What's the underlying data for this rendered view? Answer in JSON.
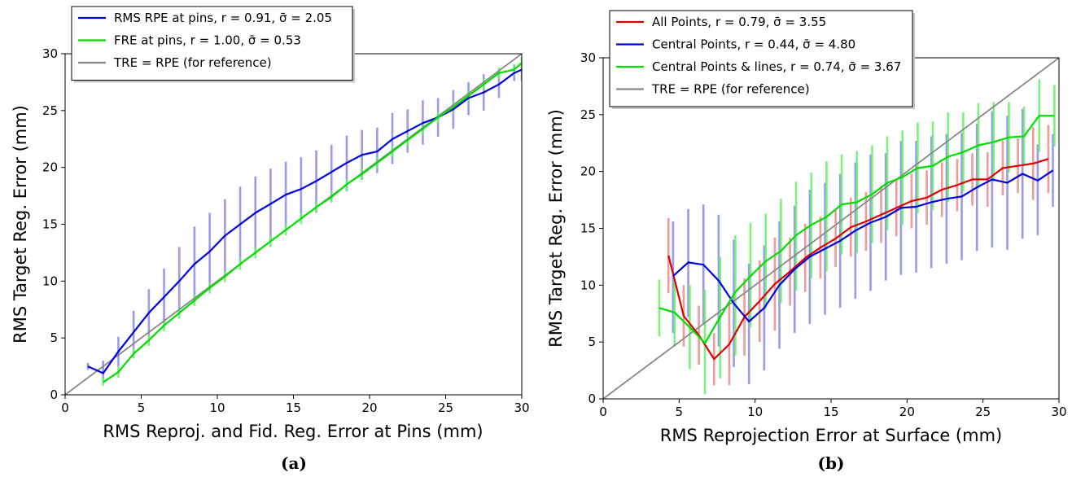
{
  "chart_data": [
    {
      "type": "line",
      "caption": "(a)",
      "xlabel": "RMS Reproj. and Fid. Reg. Error at Pins (mm)",
      "ylabel": "RMS Target Reg. Error (mm)",
      "xlim": [
        0,
        30
      ],
      "ylim": [
        0,
        30
      ],
      "xticks": [
        "0",
        "5",
        "10",
        "15",
        "20",
        "25",
        "30"
      ],
      "yticks": [
        "0",
        "5",
        "10",
        "15",
        "20",
        "25",
        "30"
      ],
      "grid": false,
      "legend_position": "top-left",
      "series": [
        {
          "name": "RMS RPE at pins, r = 0.91, σ̄ = 2.05",
          "color": "#0000dd",
          "errcolor": "#8888ee",
          "x": [
            1.5,
            2.5,
            3.5,
            4.5,
            5.5,
            6.5,
            7.5,
            8.5,
            9.5,
            10.5,
            11.5,
            12.5,
            13.5,
            14.5,
            15.5,
            16.5,
            17.5,
            18.5,
            19.5,
            20.5,
            21.5,
            22.5,
            23.5,
            24.5,
            25.5,
            26.5,
            27.5,
            28.5,
            29.5,
            30
          ],
          "y": [
            2.5,
            1.9,
            3.8,
            5.5,
            7.2,
            8.6,
            10.0,
            11.5,
            12.6,
            14.0,
            15.0,
            16.0,
            16.8,
            17.6,
            18.1,
            18.8,
            19.6,
            20.4,
            21.1,
            21.4,
            22.5,
            23.2,
            23.9,
            24.4,
            25.1,
            26.1,
            26.6,
            27.3,
            28.3,
            28.6
          ],
          "err_low": [
            2.2,
            1.3,
            2.5,
            3.6,
            5.1,
            6.2,
            7.0,
            8.2,
            9.2,
            10.7,
            11.7,
            12.4,
            13.5,
            14.5,
            15.4,
            16.0,
            17.0,
            17.9,
            18.9,
            19.5,
            20.3,
            21.3,
            22.0,
            22.7,
            23.4,
            24.6,
            25.0,
            26.1,
            27.6,
            27.6
          ],
          "err_high": [
            2.8,
            3.0,
            5.1,
            7.4,
            9.3,
            11.1,
            13.0,
            14.8,
            16.0,
            17.2,
            18.3,
            19.2,
            19.9,
            20.5,
            20.9,
            21.5,
            22.0,
            22.8,
            23.3,
            23.5,
            24.8,
            25.1,
            25.9,
            26.1,
            26.8,
            27.5,
            28.2,
            28.5,
            29.0,
            29.6
          ]
        },
        {
          "name": "FRE at pins, r = 1.00, σ̄ = 0.53",
          "color": "#00dd00",
          "errcolor": "#66ee66",
          "x": [
            2.5,
            3.5,
            4.5,
            5.5,
            6.5,
            7.5,
            8.5,
            9.5,
            10.5,
            11.5,
            12.5,
            13.5,
            14.5,
            15.5,
            16.5,
            17.5,
            18.5,
            19.5,
            20.5,
            21.5,
            22.5,
            23.5,
            24.5,
            25.5,
            26.5,
            27.5,
            28.5,
            29.5,
            30
          ],
          "y": [
            1.1,
            2.0,
            3.6,
            4.8,
            6.1,
            7.2,
            8.3,
            9.4,
            10.4,
            11.5,
            12.5,
            13.5,
            14.5,
            15.5,
            16.5,
            17.4,
            18.5,
            19.4,
            20.4,
            21.4,
            22.4,
            23.4,
            24.4,
            25.3,
            26.3,
            27.3,
            28.3,
            28.6,
            29.2
          ],
          "err_low": [
            0.8,
            1.5,
            3.2,
            4.3,
            5.6,
            6.7,
            7.8,
            8.9,
            9.9,
            11.0,
            12.0,
            13.0,
            14.0,
            15.0,
            16.0,
            16.9,
            18.0,
            18.9,
            19.9,
            20.9,
            21.9,
            22.9,
            23.9,
            24.8,
            25.8,
            26.8,
            27.8,
            28.1,
            28.7
          ],
          "err_high": [
            1.5,
            2.5,
            4.1,
            5.3,
            6.6,
            7.7,
            8.8,
            9.9,
            10.9,
            12.0,
            13.0,
            14.0,
            15.0,
            16.0,
            17.0,
            17.9,
            19.0,
            19.9,
            20.9,
            21.9,
            22.9,
            23.9,
            24.9,
            25.8,
            26.8,
            27.8,
            28.8,
            29.1,
            29.7
          ]
        },
        {
          "name": "TRE = RPE (for reference)",
          "color": "#888888",
          "x": [
            0,
            30
          ],
          "y": [
            0,
            30
          ]
        }
      ]
    },
    {
      "type": "line",
      "caption": "(b)",
      "xlabel": "RMS Reprojection Error at Surface (mm)",
      "ylabel": "RMS Target Reg. Error (mm)",
      "xlim": [
        0,
        30
      ],
      "ylim": [
        0,
        30
      ],
      "xticks": [
        "0",
        "5",
        "10",
        "15",
        "20",
        "25",
        "30"
      ],
      "yticks": [
        "0",
        "5",
        "10",
        "15",
        "20",
        "25",
        "30"
      ],
      "grid": false,
      "legend_position": "top-left",
      "series": [
        {
          "name": "All Points, r = 0.79, σ̄ = 3.55",
          "color": "#dd0000",
          "errcolor": "#ee8888",
          "x": [
            4.3,
            5.3,
            6.3,
            7.3,
            8.3,
            9.3,
            10.3,
            11.3,
            12.3,
            13.3,
            14.3,
            15.3,
            16.3,
            17.3,
            18.3,
            19.3,
            20.3,
            21.3,
            22.3,
            23.3,
            24.3,
            25.3,
            26.3,
            27.3,
            28.3,
            29.3
          ],
          "y": [
            12.6,
            7.3,
            5.6,
            3.5,
            4.8,
            7.2,
            8.6,
            10.1,
            11.2,
            12.4,
            13.3,
            14.1,
            15.1,
            15.6,
            16.2,
            16.8,
            17.4,
            17.7,
            18.4,
            18.8,
            19.3,
            19.3,
            20.3,
            20.5,
            20.7,
            21.1
          ],
          "err_low": [
            9.3,
            4.6,
            3.0,
            1.2,
            1.2,
            3.8,
            5.0,
            6.0,
            8.2,
            9.4,
            10.6,
            11.6,
            12.5,
            13.0,
            13.7,
            14.3,
            15.0,
            15.3,
            16.0,
            16.5,
            17.0,
            16.9,
            17.9,
            18.1,
            17.5,
            18.1
          ],
          "err_high": [
            15.9,
            10.0,
            8.2,
            5.8,
            8.4,
            10.6,
            12.2,
            14.2,
            14.2,
            15.4,
            16.0,
            16.6,
            17.7,
            18.2,
            18.7,
            19.3,
            19.8,
            20.1,
            20.8,
            21.1,
            21.6,
            21.7,
            22.7,
            22.9,
            23.9,
            24.1
          ]
        },
        {
          "name": "Central Points, r = 0.44, σ̄ = 4.80",
          "color": "#0000dd",
          "errcolor": "#8888ee",
          "x": [
            4.6,
            5.6,
            6.6,
            7.6,
            8.6,
            9.6,
            10.6,
            11.6,
            12.6,
            13.6,
            14.6,
            15.6,
            16.6,
            17.6,
            18.6,
            19.6,
            20.6,
            21.6,
            22.6,
            23.6,
            24.6,
            25.6,
            26.6,
            27.6,
            28.6,
            29.6
          ],
          "y": [
            10.8,
            12.0,
            11.8,
            10.4,
            8.4,
            6.8,
            8.0,
            10.0,
            11.4,
            12.5,
            13.2,
            13.9,
            14.8,
            15.5,
            16.0,
            16.8,
            16.9,
            17.3,
            17.6,
            17.8,
            18.6,
            19.3,
            19.0,
            19.8,
            19.2,
            20.1
          ],
          "err_low": [
            5.8,
            7.2,
            6.5,
            4.6,
            2.8,
            1.3,
            2.5,
            4.4,
            5.8,
            6.6,
            7.4,
            8.0,
            8.8,
            9.5,
            10.4,
            10.9,
            11.1,
            11.5,
            11.9,
            12.2,
            13.0,
            13.3,
            13.1,
            14.1,
            14.4,
            16.9
          ],
          "err_high": [
            15.6,
            16.7,
            17.1,
            16.2,
            14.0,
            11.9,
            13.5,
            15.6,
            17.0,
            18.4,
            19.0,
            19.8,
            20.8,
            21.5,
            21.6,
            22.7,
            22.7,
            23.1,
            23.3,
            23.4,
            24.2,
            25.3,
            24.9,
            25.5,
            22.4,
            23.3
          ]
        },
        {
          "name": "Central Points & lines, r = 0.74, σ̄ = 3.67",
          "color": "#00dd00",
          "errcolor": "#66ee66",
          "x": [
            3.7,
            4.7,
            5.7,
            6.7,
            7.7,
            8.7,
            9.7,
            10.7,
            11.7,
            12.7,
            13.7,
            14.7,
            15.7,
            16.7,
            17.7,
            18.7,
            19.7,
            20.7,
            21.7,
            22.7,
            23.7,
            24.7,
            25.7,
            26.7,
            27.7,
            28.7,
            29.7
          ],
          "y": [
            8.0,
            7.6,
            6.3,
            4.9,
            7.2,
            9.4,
            10.8,
            12.1,
            13.0,
            14.4,
            15.3,
            16.0,
            17.1,
            17.3,
            18.0,
            19.0,
            19.5,
            20.3,
            20.5,
            21.3,
            21.7,
            22.3,
            22.6,
            23.0,
            23.1,
            24.9,
            24.9
          ],
          "err_low": [
            5.5,
            4.6,
            2.6,
            0.4,
            1.8,
            3.8,
            6.3,
            7.9,
            8.4,
            9.5,
            10.6,
            11.2,
            12.7,
            12.8,
            13.7,
            14.8,
            15.3,
            16.3,
            16.6,
            17.3,
            18.2,
            18.5,
            19.1,
            19.9,
            20.5,
            21.7,
            22.2
          ],
          "err_high": [
            10.5,
            10.5,
            10.0,
            9.6,
            12.5,
            14.4,
            15.5,
            16.3,
            17.6,
            19.1,
            19.9,
            20.9,
            21.5,
            21.8,
            22.3,
            23.1,
            23.6,
            24.3,
            24.4,
            25.2,
            25.2,
            26.0,
            26.1,
            26.1,
            25.7,
            28.1,
            27.6
          ]
        },
        {
          "name": "TRE = RPE (for reference)",
          "color": "#888888",
          "x": [
            0,
            30
          ],
          "y": [
            0,
            30
          ]
        }
      ]
    }
  ]
}
